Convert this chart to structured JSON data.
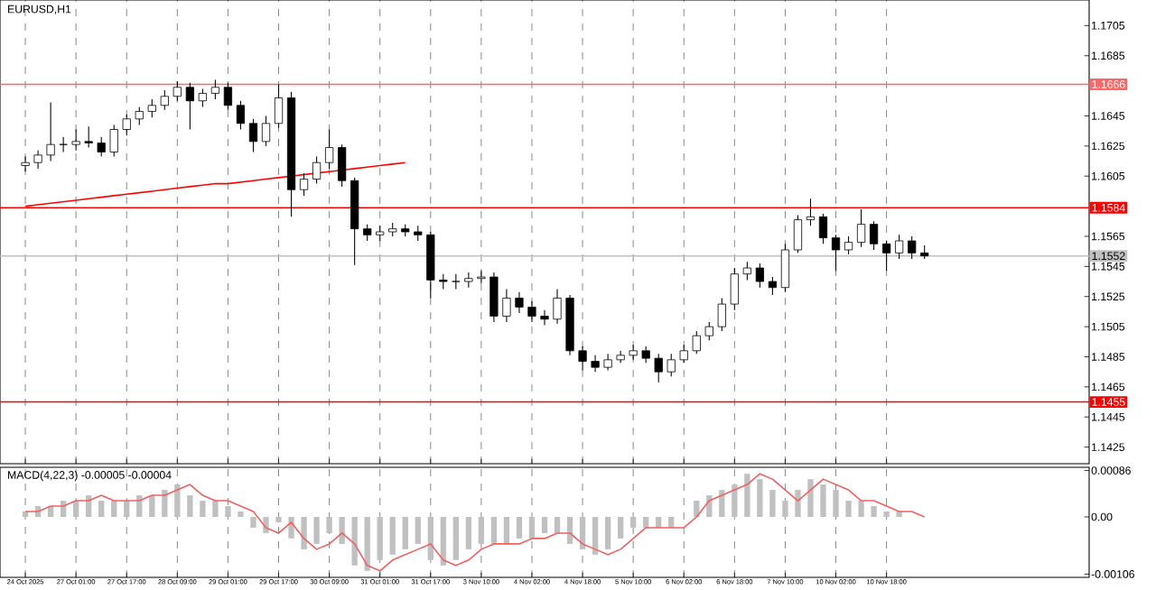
{
  "chart_data": [
    {
      "type": "candlestick",
      "title": "EURUSD,H1",
      "grid": "x",
      "categories": [
        null,
        null,
        null,
        null,
        null,
        null,
        null,
        null,
        null,
        null,
        null,
        null,
        null,
        null,
        null,
        null,
        null,
        null,
        null,
        null,
        null,
        null,
        null,
        null,
        null,
        null,
        null,
        null,
        null,
        null,
        null,
        null,
        null,
        null,
        null,
        null,
        null,
        null,
        null,
        null,
        null,
        null,
        null,
        null,
        null,
        null,
        null,
        null,
        null,
        null,
        null,
        null,
        null,
        null,
        null,
        null,
        null,
        null,
        null,
        null,
        null,
        null,
        null,
        null,
        null,
        null,
        null,
        null,
        null,
        null,
        null,
        null,
        null,
        null,
        null,
        null,
        null,
        null,
        null,
        null,
        null,
        null,
        null,
        null,
        null
      ],
      "ohlc": [
        [
          1.1612,
          1.1618,
          1.1608,
          1.1614
        ],
        [
          1.1614,
          1.1622,
          1.161,
          1.1619
        ],
        [
          1.1619,
          1.1654,
          1.1615,
          1.1626
        ],
        [
          1.1626,
          1.1631,
          1.1621,
          1.1626
        ],
        [
          1.1626,
          1.1636,
          1.1622,
          1.1628
        ],
        [
          1.1628,
          1.1638,
          1.1624,
          1.1627
        ],
        [
          1.1627,
          1.1631,
          1.1618,
          1.1621
        ],
        [
          1.1621,
          1.1639,
          1.1618,
          1.1636
        ],
        [
          1.1636,
          1.1646,
          1.1632,
          1.1643
        ],
        [
          1.1643,
          1.1651,
          1.1639,
          1.1648
        ],
        [
          1.1648,
          1.1656,
          1.1644,
          1.1652
        ],
        [
          1.1652,
          1.1662,
          1.1649,
          1.1658
        ],
        [
          1.1658,
          1.1668,
          1.1655,
          1.1664
        ],
        [
          1.1664,
          1.1667,
          1.1636,
          1.1655
        ],
        [
          1.1655,
          1.1663,
          1.1651,
          1.166
        ],
        [
          1.166,
          1.1669,
          1.1656,
          1.1664
        ],
        [
          1.1664,
          1.1667,
          1.1649,
          1.1652
        ],
        [
          1.1652,
          1.1655,
          1.1636,
          1.164
        ],
        [
          1.164,
          1.1643,
          1.1621,
          1.1628
        ],
        [
          1.1628,
          1.1645,
          1.1625,
          1.164
        ],
        [
          1.164,
          1.1666,
          1.1637,
          1.1657
        ],
        [
          1.1657,
          1.1661,
          1.1578,
          1.1596
        ],
        [
          1.1596,
          1.1607,
          1.1592,
          1.1603
        ],
        [
          1.1603,
          1.1618,
          1.16,
          1.1614
        ],
        [
          1.1614,
          1.1636,
          1.161,
          1.1624
        ],
        [
          1.1624,
          1.1626,
          1.1598,
          1.1602
        ],
        [
          1.1602,
          1.1604,
          1.1546,
          1.157
        ],
        [
          1.157,
          1.1573,
          1.1562,
          1.1566
        ],
        [
          1.1566,
          1.1572,
          1.1562,
          1.1568
        ],
        [
          1.1568,
          1.1574,
          1.1565,
          1.157
        ],
        [
          1.157,
          1.1573,
          1.1565,
          1.1568
        ],
        [
          1.1568,
          1.1572,
          1.1562,
          1.1566
        ],
        [
          1.1566,
          1.1568,
          1.1524,
          1.1536
        ],
        [
          1.1536,
          1.154,
          1.153,
          1.1535
        ],
        [
          1.1535,
          1.154,
          1.153,
          1.1535
        ],
        [
          1.1535,
          1.1541,
          1.1531,
          1.1537
        ],
        [
          1.1537,
          1.1542,
          1.1534,
          1.1538
        ],
        [
          1.1538,
          1.1541,
          1.1508,
          1.1512
        ],
        [
          1.1512,
          1.153,
          1.1508,
          1.1524
        ],
        [
          1.1524,
          1.1528,
          1.1514,
          1.1518
        ],
        [
          1.1518,
          1.1522,
          1.1508,
          1.1512
        ],
        [
          1.1512,
          1.1516,
          1.1506,
          1.151
        ],
        [
          1.151,
          1.153,
          1.1507,
          1.1524
        ],
        [
          1.1524,
          1.1526,
          1.1486,
          1.1489
        ],
        [
          1.1489,
          1.1492,
          1.1476,
          1.1482
        ],
        [
          1.1482,
          1.1486,
          1.1475,
          1.1478
        ],
        [
          1.1478,
          1.1487,
          1.1476,
          1.1483
        ],
        [
          1.1483,
          1.1489,
          1.1481,
          1.1486
        ],
        [
          1.1486,
          1.1493,
          1.1483,
          1.1489
        ],
        [
          1.1489,
          1.1492,
          1.1481,
          1.1484
        ],
        [
          1.1484,
          1.1487,
          1.1468,
          1.1475
        ],
        [
          1.1475,
          1.1487,
          1.1472,
          1.1483
        ],
        [
          1.1483,
          1.1493,
          1.1481,
          1.1489
        ],
        [
          1.1489,
          1.1502,
          1.1487,
          1.1499
        ],
        [
          1.1499,
          1.1508,
          1.1496,
          1.1505
        ],
        [
          1.1505,
          1.1524,
          1.1502,
          1.152
        ],
        [
          1.152,
          1.1544,
          1.1516,
          1.154
        ],
        [
          1.154,
          1.1548,
          1.1536,
          1.1544
        ],
        [
          1.1544,
          1.1547,
          1.1531,
          1.1535
        ],
        [
          1.1535,
          1.1538,
          1.1526,
          1.1531
        ],
        [
          1.1531,
          1.156,
          1.1528,
          1.1556
        ],
        [
          1.1556,
          1.1579,
          1.1554,
          1.1576
        ],
        [
          1.1576,
          1.159,
          1.1572,
          1.1578
        ],
        [
          1.1578,
          1.158,
          1.156,
          1.1564
        ],
        [
          1.1564,
          1.1566,
          1.1542,
          1.1556
        ],
        [
          1.1556,
          1.1565,
          1.1553,
          1.1561
        ],
        [
          1.1561,
          1.1583,
          1.1558,
          1.1573
        ],
        [
          1.1573,
          1.1575,
          1.1556,
          1.156
        ],
        [
          1.156,
          1.1562,
          1.1542,
          1.1554
        ],
        [
          1.1554,
          1.1566,
          1.155,
          1.1562
        ],
        [
          1.1562,
          1.1565,
          1.155,
          1.1554
        ],
        [
          1.1554,
          1.1559,
          1.155,
          1.1552
        ],
        null,
        null,
        null,
        null,
        null,
        null,
        null,
        null,
        null,
        null,
        null,
        null,
        null
      ],
      "series": [
        {
          "type": "line",
          "color": "#ff0000",
          "values": [
            1.1585,
            1.1586,
            1.1587,
            1.1588,
            1.1589,
            1.159,
            1.1591,
            1.1592,
            1.1593,
            1.1594,
            1.1595,
            1.1596,
            1.1597,
            1.1598,
            1.1599,
            1.16,
            1.16,
            1.1601,
            1.1602,
            1.1603,
            1.1604,
            1.1605,
            1.1606,
            1.1607,
            1.1608,
            1.1609,
            1.161,
            1.1611,
            1.1612,
            1.1613,
            1.1614,
            null,
            null,
            null,
            null,
            null,
            null,
            null,
            null,
            null,
            null,
            null,
            null,
            null,
            null,
            null,
            null,
            null,
            null,
            null,
            null,
            null,
            null,
            null,
            null,
            null,
            null,
            null,
            null,
            null,
            null,
            null,
            null,
            null,
            null,
            null,
            null,
            null,
            null,
            null,
            null,
            null,
            null,
            null,
            null,
            null,
            null,
            null,
            null,
            null,
            null,
            null,
            null,
            null,
            null
          ]
        }
      ],
      "ylim": [
        1.1414,
        1.1722
      ],
      "yticks": [
        1.1705,
        1.1685,
        1.1645,
        1.1625,
        1.1605,
        1.1565,
        1.1545,
        1.1525,
        1.1505,
        1.1485,
        1.1465,
        1.1445,
        1.1425
      ],
      "ref_lines": [
        {
          "axis": "y",
          "value": 1.1666,
          "label": "1.1666",
          "color": "#ff6666"
        },
        {
          "axis": "y",
          "value": 1.1584,
          "label": "1.1584",
          "color": "#ff0000"
        },
        {
          "axis": "y",
          "value": 1.1552,
          "label": "1.1552",
          "color": "#c0c0c0"
        },
        {
          "axis": "y",
          "value": 1.1455,
          "label": "1.1455",
          "color": "#ff0000"
        }
      ]
    },
    {
      "type": "bar",
      "title": "MACD(4,22,3) -0.00005 -0.00004",
      "grid": "x",
      "categories": [
        "24 Oct 2025",
        null,
        null,
        null,
        "27 Oct 01:00",
        null,
        null,
        null,
        "27 Oct 17:00",
        null,
        null,
        null,
        "28 Oct 09:00",
        null,
        null,
        null,
        "29 Oct 01:00",
        null,
        null,
        null,
        "29 Oct 17:00",
        null,
        null,
        null,
        "30 Oct 09:00",
        null,
        null,
        null,
        "31 Oct 01:00",
        null,
        null,
        null,
        "31 Oct 17:00",
        null,
        null,
        null,
        "3 Nov 10:00",
        null,
        null,
        null,
        "4 Nov 02:00",
        null,
        null,
        null,
        "4 Nov 18:00",
        null,
        null,
        null,
        "5 Nov 10:00",
        null,
        null,
        null,
        "6 Nov 02:00",
        null,
        null,
        null,
        "6 Nov 18:00",
        null,
        null,
        null,
        "7 Nov 10:00",
        null,
        null,
        null,
        "10 Nov 02:00",
        null,
        null,
        null,
        "10 Nov 18:00",
        null,
        null,
        null,
        null,
        null,
        null,
        null,
        null,
        null,
        null,
        null,
        null,
        null,
        null,
        null,
        null
      ],
      "series": [
        {
          "color": "#c0c0c0",
          "values": [
            0.0001,
            0.0002,
            0.0002,
            0.0003,
            0.0003,
            0.0004,
            0.0003,
            0.0003,
            0.0003,
            0.0004,
            0.0004,
            0.0005,
            0.0006,
            0.0004,
            0.0003,
            0.0003,
            0.0002,
            0.0001,
            -0.0002,
            -0.0003,
            -0.0001,
            -0.0004,
            -0.0006,
            -0.0005,
            -0.0003,
            -0.0005,
            -0.0009,
            -0.001,
            -0.0008,
            -0.0007,
            -0.0006,
            -0.0005,
            -0.0008,
            -0.0009,
            -0.0008,
            -0.0006,
            -0.0005,
            -0.0005,
            -0.0005,
            -0.0004,
            -0.0004,
            -0.0003,
            -0.0003,
            -0.0005,
            -0.0006,
            -0.0007,
            -0.0006,
            -0.0004,
            -0.0002,
            -0.0002,
            -0.0002,
            -0.0002,
            0,
            0.0003,
            0.0004,
            0.0005,
            0.0006,
            0.0008,
            0.0007,
            0.0005,
            0.0003,
            0.0005,
            0.0007,
            0.0006,
            0.0005,
            0.0003,
            0.0003,
            0.0002,
            0.0001,
            0.0001,
            0,
            0,
            null,
            null,
            null,
            null,
            null,
            null,
            null,
            null,
            null,
            null,
            null,
            null,
            null
          ]
        },
        {
          "type": "line",
          "color": "#f06060",
          "values": [
            0.0001,
            0.0001,
            0.0002,
            0.0002,
            0.0003,
            0.0003,
            0.0004,
            0.0003,
            0.0003,
            0.0003,
            0.0004,
            0.0004,
            0.0005,
            0.0006,
            0.0004,
            0.0003,
            0.0003,
            0.0002,
            0.0001,
            -0.0002,
            -0.0003,
            -0.0001,
            -0.0004,
            -0.0006,
            -0.0005,
            -0.0003,
            -0.0005,
            -0.0009,
            -0.001,
            -0.0008,
            -0.0007,
            -0.0006,
            -0.0005,
            -0.0008,
            -0.0009,
            -0.0008,
            -0.0006,
            -0.0005,
            -0.0005,
            -0.0005,
            -0.0004,
            -0.0004,
            -0.0003,
            -0.0003,
            -0.0005,
            -0.0006,
            -0.0007,
            -0.0006,
            -0.0004,
            -0.0002,
            -0.0002,
            -0.0002,
            -0.0002,
            0,
            0.0003,
            0.0004,
            0.0005,
            0.0006,
            0.0008,
            0.0007,
            0.0005,
            0.0003,
            0.0005,
            0.0007,
            0.0006,
            0.0005,
            0.0003,
            0.0003,
            0.0002,
            0.0001,
            0.0001,
            0,
            null,
            null,
            null,
            null,
            null,
            null,
            null,
            null,
            null,
            null,
            null,
            null,
            null
          ]
        }
      ],
      "ylim": [
        -0.00112,
        0.00092
      ],
      "yticks": [
        0.00086,
        {
          "value": 0,
          "label": "0.00"
        },
        -0.00106
      ]
    }
  ]
}
